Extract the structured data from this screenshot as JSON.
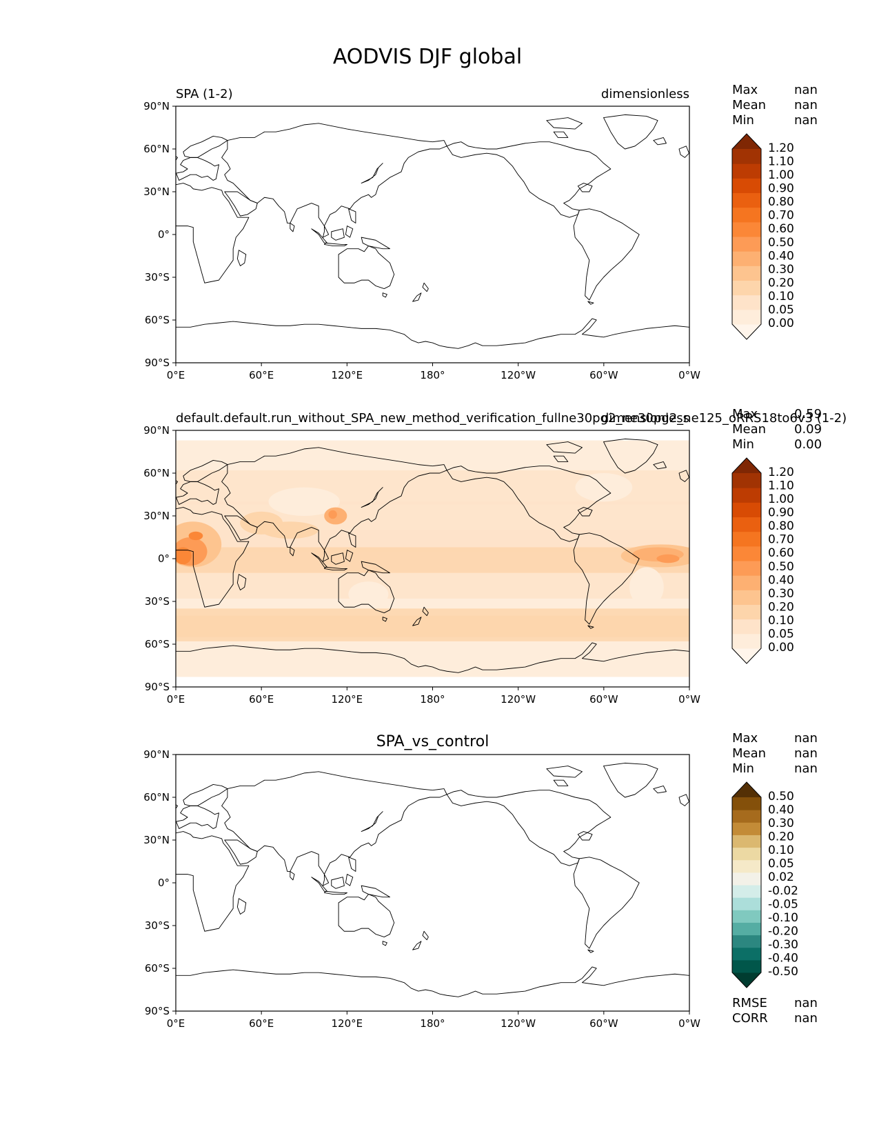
{
  "figure": {
    "title": "AODVIS DJF global"
  },
  "axes_common": {
    "xticks": [
      "0°E",
      "60°E",
      "120°E",
      "180°",
      "120°W",
      "60°W",
      "0°W"
    ],
    "yticks": [
      "90°N",
      "60°N",
      "30°N",
      "0°",
      "30°S",
      "60°S",
      "90°S"
    ]
  },
  "colors": {
    "orange_scale": [
      "#fff5eb",
      "#feeddb",
      "#fee3c9",
      "#fdd5ab",
      "#fdc48f",
      "#fdb072",
      "#fd9b56",
      "#fb8737",
      "#f57520",
      "#ea6010",
      "#d84b04",
      "#bd3c02",
      "#a13303",
      "#7f2704"
    ],
    "diff_scale": [
      "#003c30",
      "#01564a",
      "#0c6f66",
      "#2c8780",
      "#55ada3",
      "#80c9bf",
      "#acdeda",
      "#d4ede9",
      "#f3f1e8",
      "#f5e9c8",
      "#ecd9a3",
      "#dbb870",
      "#c38b37",
      "#a66b1d",
      "#84500a",
      "#543005"
    ],
    "coastline": "#000000"
  },
  "chart_data": [
    {
      "type": "heatmap",
      "title_left": "SPA (1-2)",
      "title_center": "",
      "title_right": "dimensionless",
      "stats": {
        "labels": [
          "Max",
          "Mean",
          "Min"
        ],
        "values": [
          "nan",
          "nan",
          "nan"
        ]
      },
      "colorbar": {
        "ticks": [
          "1.20",
          "1.10",
          "1.00",
          "0.90",
          "0.80",
          "0.70",
          "0.60",
          "0.50",
          "0.40",
          "0.30",
          "0.20",
          "0.10",
          "0.05",
          "0.00"
        ],
        "extend": "both"
      },
      "field": "missing (all nan)"
    },
    {
      "type": "heatmap",
      "title_left": "default.default.run_without_SPA_new_method_verification_fullne30pg2_ne30pg2_ne125_oRRS18to6v3 (1-2)",
      "title_center": "",
      "title_right": "dimensionless",
      "stats": {
        "labels": [
          "Max",
          "Mean",
          "Min"
        ],
        "values": [
          "0.59",
          "0.09",
          "0.00"
        ]
      },
      "colorbar": {
        "ticks": [
          "1.20",
          "1.10",
          "1.00",
          "0.90",
          "0.80",
          "0.70",
          "0.60",
          "0.50",
          "0.40",
          "0.30",
          "0.20",
          "0.10",
          "0.05",
          "0.00"
        ],
        "extend": "both"
      },
      "field": "aerosol optical depth, lat 83S-83N"
    },
    {
      "type": "heatmap",
      "title_left": "",
      "title_center": "SPA_vs_control",
      "title_right": "",
      "stats": {
        "labels": [
          "Max",
          "Mean",
          "Min"
        ],
        "values": [
          "nan",
          "nan",
          "nan"
        ]
      },
      "colorbar": {
        "ticks": [
          "0.50",
          "0.40",
          "0.30",
          "0.20",
          "0.10",
          "0.05",
          "0.02",
          "-0.02",
          "-0.05",
          "-0.10",
          "-0.20",
          "-0.30",
          "-0.40",
          "-0.50"
        ],
        "extend": "both"
      },
      "field": "missing (all nan)",
      "extra_stats": {
        "labels": [
          "RMSE",
          "CORR"
        ],
        "values": [
          "nan",
          "nan"
        ]
      }
    }
  ]
}
